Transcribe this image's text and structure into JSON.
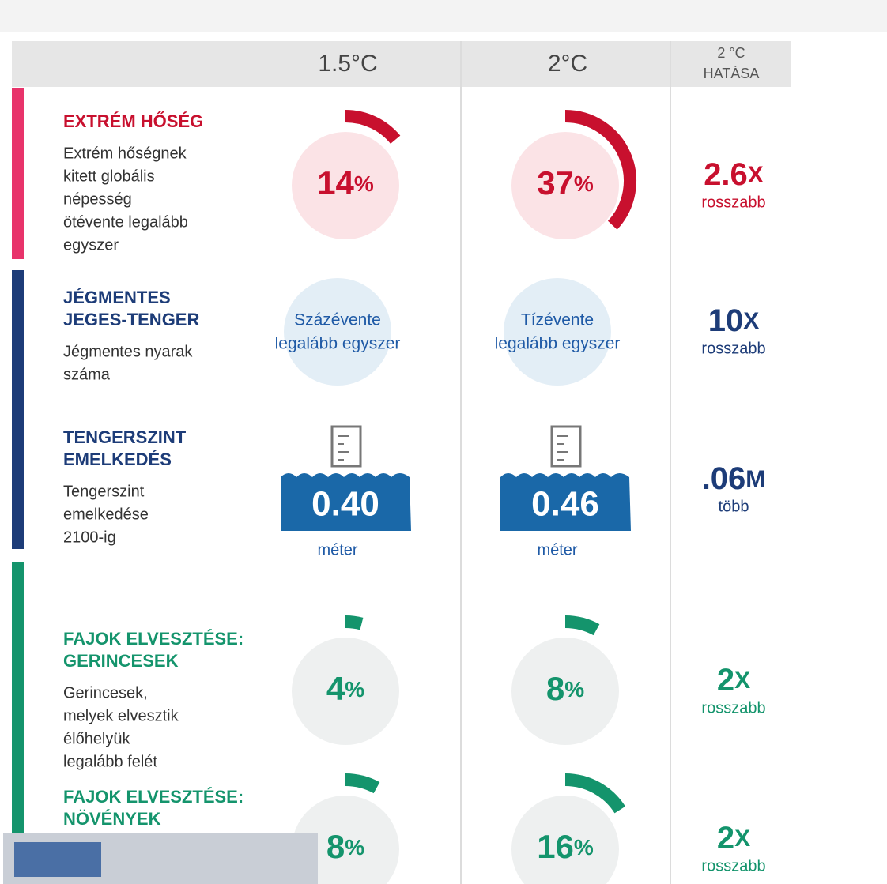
{
  "header": {
    "c15": "1.5°C",
    "c2": "2°C",
    "impact": [
      "2 °C",
      "HATÁSA"
    ]
  },
  "rows": [
    {
      "title": [
        "EXTRÉM HŐSÉG"
      ],
      "description": [
        "Extrém hőségnek",
        "kitett globális",
        "népesség",
        "ötévente legalább",
        "egyszer"
      ],
      "color": "#c8102e",
      "bar_color": "#e8336b",
      "c15": {
        "value": 14,
        "unit": "%"
      },
      "c2": {
        "value": 37,
        "unit": "%"
      },
      "impact": {
        "value": "2.6",
        "unit": "X",
        "note": "rosszabb"
      }
    },
    {
      "title": [
        "JÉGMENTES",
        "JEGES-TENGER"
      ],
      "description": [
        "Jégmentes nyarak",
        "száma"
      ],
      "color": "#1d3c78",
      "bar_color": "#1d3c78",
      "c15": {
        "text": [
          "Százévente",
          "legalább egyszer"
        ]
      },
      "c2": {
        "text": [
          "Tízévente",
          "legalább egyszer"
        ]
      },
      "impact": {
        "value": "10",
        "unit": "X",
        "note": "rosszabb"
      }
    },
    {
      "title": [
        "TENGERSZINT",
        "EMELKEDÉS"
      ],
      "description": [
        "Tengerszint",
        "emelkedése",
        "2100-ig"
      ],
      "color": "#1d3c78",
      "bar_color": "#1d3c78",
      "c15": {
        "level": "0.40",
        "unit": "méter"
      },
      "c2": {
        "level": "0.46",
        "unit": "méter"
      },
      "impact": {
        "value": ".06",
        "unit": "M",
        "note": "több"
      }
    },
    {
      "title": [
        "FAJOK ELVESZTÉSE:",
        "GERINCESEK"
      ],
      "description": [
        "Gerincesek,",
        "melyek elvesztik",
        "élőhelyük",
        "legalább felét"
      ],
      "color": "#14946c",
      "bar_color": "#14946c",
      "c15": {
        "value": 4,
        "unit": "%"
      },
      "c2": {
        "value": 8,
        "unit": "%"
      },
      "impact": {
        "value": "2",
        "unit": "X",
        "note": "rosszabb"
      }
    },
    {
      "title": [
        "FAJOK ELVESZTÉSE:",
        "NÖVÉNYEK"
      ],
      "description": [],
      "color": "#14946c",
      "bar_color": "#14946c",
      "c15": {
        "value": 8,
        "unit": "%"
      },
      "c2": {
        "value": 16,
        "unit": "%"
      },
      "impact": {
        "value": "2",
        "unit": "X",
        "note": "rosszabb"
      }
    }
  ]
}
